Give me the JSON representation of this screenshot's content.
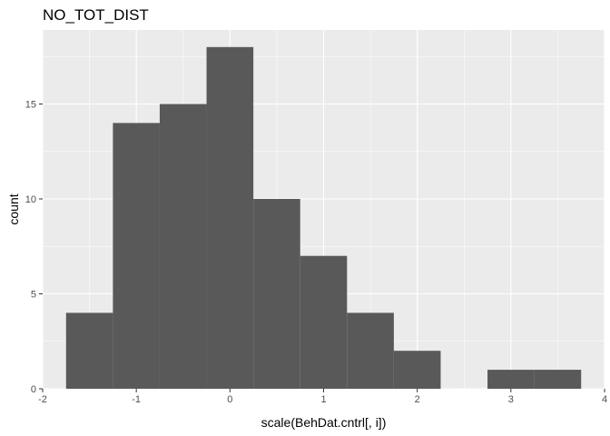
{
  "chart_data": {
    "type": "bar",
    "title": "NO_TOT_DIST",
    "xlabel": "scale(BehDat.cntrl[, i])",
    "ylabel": "count",
    "xlim": [
      -2,
      4
    ],
    "ylim": [
      0,
      18.9
    ],
    "xticks": [
      -2,
      -1,
      0,
      1,
      2,
      3,
      4
    ],
    "yticks": [
      0,
      5,
      10,
      15
    ],
    "bin_width": 0.5,
    "bins": [
      {
        "x0": -1.75,
        "x1": -1.25,
        "count": 4
      },
      {
        "x0": -1.25,
        "x1": -0.75,
        "count": 14
      },
      {
        "x0": -0.75,
        "x1": -0.25,
        "count": 15
      },
      {
        "x0": -0.25,
        "x1": 0.25,
        "count": 18
      },
      {
        "x0": 0.25,
        "x1": 0.75,
        "count": 10
      },
      {
        "x0": 0.75,
        "x1": 1.25,
        "count": 7
      },
      {
        "x0": 1.25,
        "x1": 1.75,
        "count": 4
      },
      {
        "x0": 1.75,
        "x1": 2.25,
        "count": 2
      },
      {
        "x0": 2.25,
        "x1": 2.75,
        "count": 0
      },
      {
        "x0": 2.75,
        "x1": 3.25,
        "count": 1
      },
      {
        "x0": 3.25,
        "x1": 3.75,
        "count": 1
      }
    ],
    "grid": true,
    "panel_color": "#ebebeb",
    "bar_color": "#595959"
  }
}
